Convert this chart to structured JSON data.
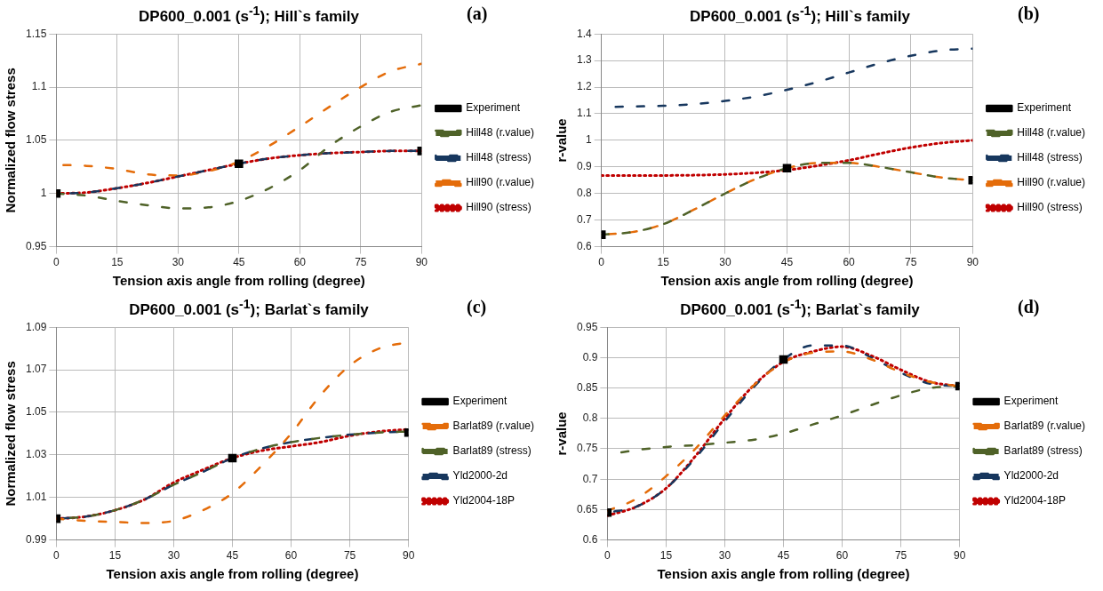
{
  "chart_data": [
    {
      "type": "line",
      "title": "DP600_0.001 (s$^{-1}$); Hill`s family",
      "xlabel": "Tension axis angle from rolling (degree)",
      "ylabel": "Normalized flow stress",
      "annotations": [
        "(a)"
      ],
      "x": [
        0,
        7.5,
        15,
        22.5,
        30,
        37.5,
        45,
        52.5,
        60,
        67.5,
        75,
        82.5,
        90
      ],
      "xlim": [
        0,
        90
      ],
      "xticks": [
        0,
        15,
        30,
        45,
        60,
        75,
        90
      ],
      "ylim": [
        0.95,
        1.15
      ],
      "yticks": [
        0.95,
        1,
        1.05,
        1.1,
        1.15
      ],
      "grid": true,
      "legend": "right",
      "series": [
        {
          "name": "Experiment",
          "type": "scatter",
          "color": "#000000",
          "marker": "square",
          "x": [
            0,
            45,
            90
          ],
          "values": [
            1,
            1.028,
            1.04
          ]
        },
        {
          "name": "Hill48 (r.value)",
          "color": "#4f6228",
          "marker": "none",
          "line_style": "dashed",
          "values": [
            1.0,
            0.998,
            0.993,
            0.989,
            0.986,
            0.987,
            0.993,
            1.005,
            1.022,
            1.045,
            1.063,
            1.077,
            1.083
          ]
        },
        {
          "name": "Hill48 (stress)",
          "color": "#17375e",
          "marker": "none",
          "line_style": "dashed",
          "values": [
            1.0,
            1.001,
            1.005,
            1.01,
            1.016,
            1.022,
            1.028,
            1.033,
            1.036,
            1.038,
            1.039,
            1.04,
            1.04
          ]
        },
        {
          "name": "Hill90 (r.value)",
          "color": "#e46c0a",
          "marker": "none",
          "line_style": "dashed",
          "values": [
            1.027,
            1.026,
            1.023,
            1.018,
            1.017,
            1.021,
            1.03,
            1.045,
            1.063,
            1.082,
            1.1,
            1.115,
            1.122
          ]
        },
        {
          "name": "Hill90 (stress)",
          "color": "#c00000",
          "marker": "none",
          "line_style": "dotted",
          "values": [
            1.0,
            1.001,
            1.005,
            1.01,
            1.016,
            1.022,
            1.028,
            1.033,
            1.036,
            1.038,
            1.039,
            1.04,
            1.04
          ]
        }
      ]
    },
    {
      "type": "line",
      "title": "DP600_0.001 (s$^{-1}$); Hill`s family",
      "xlabel": "Tension axis angle from rolling (degree)",
      "ylabel": "r-value",
      "annotations": [
        "(b)"
      ],
      "x": [
        0,
        7.5,
        15,
        22.5,
        30,
        37.5,
        45,
        52.5,
        60,
        67.5,
        75,
        82.5,
        90
      ],
      "xlim": [
        0,
        90
      ],
      "xticks": [
        0,
        15,
        30,
        45,
        60,
        75,
        90
      ],
      "ylim": [
        0.6,
        1.4
      ],
      "yticks": [
        0.6,
        0.7,
        0.8,
        0.9,
        1,
        1.1,
        1.2,
        1.3,
        1.4
      ],
      "grid": true,
      "legend": "right",
      "series": [
        {
          "name": "Experiment",
          "type": "scatter",
          "color": "#000000",
          "marker": "square",
          "x": [
            0,
            45,
            90
          ],
          "values": [
            0.645,
            0.895,
            0.85
          ]
        },
        {
          "name": "Hill48 (r.value)",
          "color": "#4f6228",
          "marker": "none",
          "line_style": "dashed",
          "values": [
            0.645,
            0.655,
            0.685,
            0.74,
            0.8,
            0.855,
            0.895,
            0.915,
            0.915,
            0.9,
            0.88,
            0.86,
            0.85
          ]
        },
        {
          "name": "Hill48 (stress)",
          "color": "#17375e",
          "marker": "none",
          "line_style": "dashed",
          "values": [
            1.125,
            1.127,
            1.13,
            1.136,
            1.148,
            1.165,
            1.19,
            1.22,
            1.255,
            1.29,
            1.318,
            1.338,
            1.345
          ]
        },
        {
          "name": "Hill90 (r.value)",
          "color": "#e46c0a",
          "marker": "none",
          "line_style": "dashed",
          "values": [
            0.645,
            0.655,
            0.685,
            0.74,
            0.8,
            0.855,
            0.895,
            0.915,
            0.915,
            0.9,
            0.88,
            0.86,
            0.85
          ]
        },
        {
          "name": "Hill90 (stress)",
          "color": "#c00000",
          "marker": "none",
          "line_style": "dotted",
          "values": [
            0.868,
            0.868,
            0.868,
            0.869,
            0.872,
            0.878,
            0.888,
            0.905,
            0.925,
            0.95,
            0.973,
            0.99,
            1.0
          ]
        }
      ]
    },
    {
      "type": "line",
      "title": "DP600_0.001 (s$^{-1}$); Barlat`s family",
      "xlabel": "Tension axis angle from rolling (degree)",
      "ylabel": "Normalized flow stress",
      "annotations": [
        "(c)"
      ],
      "x": [
        0,
        7.5,
        15,
        22.5,
        30,
        37.5,
        45,
        52.5,
        60,
        67.5,
        75,
        82.5,
        90
      ],
      "xlim": [
        0,
        90
      ],
      "xticks": [
        0,
        15,
        30,
        45,
        60,
        75,
        90
      ],
      "ylim": [
        0.99,
        1.09
      ],
      "yticks": [
        0.99,
        1.01,
        1.03,
        1.05,
        1.07,
        1.09
      ],
      "grid": true,
      "legend": "right",
      "series": [
        {
          "name": "Experiment",
          "type": "scatter",
          "color": "#000000",
          "marker": "square",
          "x": [
            0,
            45,
            90
          ],
          "values": [
            1.0,
            1.0285,
            1.0405
          ]
        },
        {
          "name": "Barlat89 (r.value)",
          "color": "#e46c0a",
          "marker": "none",
          "line_style": "dashed",
          "values": [
            1.0,
            0.999,
            0.9985,
            0.998,
            0.999,
            1.004,
            1.012,
            1.025,
            1.04,
            1.058,
            1.072,
            1.08,
            1.083
          ]
        },
        {
          "name": "Barlat89 (stress)",
          "color": "#4f6228",
          "marker": "none",
          "line_style": "dashed",
          "values": [
            1.0,
            1.001,
            1.004,
            1.009,
            1.016,
            1.022,
            1.0285,
            1.033,
            1.036,
            1.038,
            1.0395,
            1.0405,
            1.041
          ]
        },
        {
          "name": "Yld2000-2d",
          "color": "#17375e",
          "marker": "none",
          "line_style": "dashed",
          "values": [
            1.0,
            1.001,
            1.004,
            1.009,
            1.016,
            1.022,
            1.0285,
            1.033,
            1.036,
            1.038,
            1.0395,
            1.0405,
            1.041
          ]
        },
        {
          "name": "Yld2004-18P",
          "color": "#c00000",
          "marker": "none",
          "line_style": "dotted",
          "values": [
            1.0,
            1.001,
            1.004,
            1.009,
            1.017,
            1.023,
            1.0285,
            1.032,
            1.034,
            1.036,
            1.039,
            1.041,
            1.042
          ]
        }
      ]
    },
    {
      "type": "line",
      "title": "DP600_0.001 (s$^{-1}$); Barlat`s family",
      "xlabel": "Tension axis angle from rolling (degree)",
      "ylabel": "r-value",
      "annotations": [
        "(d)"
      ],
      "x": [
        0,
        7.5,
        15,
        22.5,
        30,
        37.5,
        45,
        52.5,
        60,
        67.5,
        75,
        82.5,
        90
      ],
      "xlim": [
        0,
        90
      ],
      "xticks": [
        0,
        15,
        30,
        45,
        60,
        75,
        90
      ],
      "ylim": [
        0.6,
        0.95
      ],
      "yticks": [
        0.6,
        0.65,
        0.7,
        0.75,
        0.8,
        0.85,
        0.9,
        0.95
      ],
      "grid": true,
      "legend": "right",
      "series": [
        {
          "name": "Experiment",
          "type": "scatter",
          "color": "#000000",
          "marker": "square",
          "x": [
            0,
            45,
            90
          ],
          "values": [
            0.645,
            0.897,
            0.853
          ]
        },
        {
          "name": "Barlat89 (r.value)",
          "color": "#e46c0a",
          "marker": "none",
          "line_style": "dashed",
          "values": [
            0.648,
            0.668,
            0.705,
            0.75,
            0.805,
            0.855,
            0.892,
            0.908,
            0.91,
            0.897,
            0.876,
            0.86,
            0.853
          ]
        },
        {
          "name": "Barlat89 (stress)",
          "color": "#4f6228",
          "marker": "none",
          "line_style": "dashed",
          "values": [
            0.74,
            0.748,
            0.753,
            0.756,
            0.76,
            0.765,
            0.775,
            0.79,
            0.805,
            0.822,
            0.838,
            0.85,
            0.853
          ]
        },
        {
          "name": "Yld2000-2d",
          "color": "#17375e",
          "marker": "none",
          "line_style": "dashed",
          "values": [
            0.645,
            0.655,
            0.685,
            0.735,
            0.795,
            0.852,
            0.897,
            0.92,
            0.92,
            0.9,
            0.875,
            0.857,
            0.853
          ]
        },
        {
          "name": "Yld2004-18P",
          "color": "#c00000",
          "marker": "none",
          "line_style": "dotted",
          "values": [
            0.64,
            0.655,
            0.685,
            0.738,
            0.8,
            0.855,
            0.893,
            0.91,
            0.918,
            0.903,
            0.88,
            0.86,
            0.853
          ]
        }
      ]
    }
  ]
}
